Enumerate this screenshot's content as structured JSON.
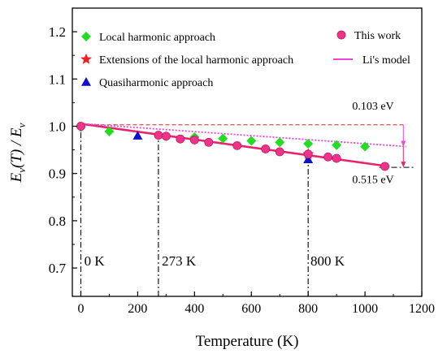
{
  "chart_data": {
    "type": "scatter",
    "xlabel": "Temperature (K)",
    "ylabel_main": "E",
    "ylabel_sub1": "v",
    "ylabel_mid": "(T) / E",
    "ylabel_sub2": "v",
    "xlim": [
      -30,
      1200
    ],
    "ylim": [
      0.64,
      1.25
    ],
    "x_ticks": [
      0,
      200,
      400,
      600,
      800,
      1000,
      1200
    ],
    "y_ticks": [
      0.7,
      0.8,
      0.9,
      1.0,
      1.1,
      1.2
    ],
    "x_tick_labels": [
      "0",
      "200",
      "400",
      "600",
      "800",
      "1000",
      "1200"
    ],
    "y_tick_labels": [
      "0.7",
      "0.8",
      "0.9",
      "1.0",
      "1.1",
      "1.2"
    ],
    "grid": false,
    "series": [
      {
        "name": "Local harmonic approach",
        "marker": "diamond",
        "color": "#22dd22",
        "x": [
          0,
          100,
          300,
          400,
          500,
          600,
          700,
          800,
          900,
          1000
        ],
        "y": [
          0.998,
          0.989,
          0.979,
          0.977,
          0.974,
          0.969,
          0.966,
          0.963,
          0.96,
          0.957
        ]
      },
      {
        "name": "Extensions of the local harmonic approach",
        "marker": "star",
        "color": "#ee2222",
        "x": [
          800
        ],
        "y": [
          0.941
        ]
      },
      {
        "name": "Quasiharmonic approach",
        "marker": "triangle",
        "color": "#1111cc",
        "x": [
          200,
          800
        ],
        "y": [
          0.98,
          0.93
        ]
      },
      {
        "name": "This work",
        "marker": "circle",
        "color": "#ee3388",
        "x": [
          0,
          273,
          300,
          350,
          400,
          450,
          550,
          650,
          700,
          800,
          870,
          900,
          1070
        ],
        "y": [
          1.0,
          0.981,
          0.979,
          0.973,
          0.971,
          0.966,
          0.959,
          0.952,
          0.946,
          0.941,
          0.935,
          0.932,
          0.915
        ]
      }
    ],
    "lines": [
      {
        "name": "This work fit",
        "style": "solid",
        "color": "#e8246e",
        "x": [
          -10,
          1085
        ],
        "y": [
          1.006,
          0.915
        ]
      },
      {
        "name": "Li's model",
        "style": "dotted",
        "color": "#ee44dd",
        "x": [
          -10,
          1145
        ],
        "y": [
          1.006,
          0.957
        ]
      }
    ],
    "reference_lines": [
      {
        "style": "dashed",
        "color": "#e02020",
        "y": 1.003,
        "x": [
          0,
          1145
        ]
      },
      {
        "style": "dashdot",
        "color": "#000000",
        "y": 0.913,
        "x": [
          1050,
          1175
        ]
      },
      {
        "style": "dashdot",
        "color": "#000000",
        "x": 0,
        "y": [
          0.64,
          1.0
        ]
      },
      {
        "style": "dashdot",
        "color": "#000000",
        "x": 273,
        "y": [
          0.64,
          0.981
        ]
      },
      {
        "style": "dashdot",
        "color": "#000000",
        "x": 800,
        "y": [
          0.64,
          0.941
        ]
      }
    ],
    "annotations": [
      {
        "text": "0.103 eV",
        "x": 955,
        "y": 1.035
      },
      {
        "text": "0.515 eV",
        "x": 955,
        "y": 0.88
      },
      {
        "text": "0 K",
        "x": 12,
        "y": 0.705
      },
      {
        "text": "273 K",
        "x": 285,
        "y": 0.705
      },
      {
        "text": "800 K",
        "x": 808,
        "y": 0.705
      }
    ],
    "legend_location": "top",
    "legend": [
      {
        "label": "Local harmonic approach",
        "marker": "diamond",
        "color": "#22dd22"
      },
      {
        "label": "Extensions of the local harmonic approach",
        "marker": "star",
        "color": "#ee2222"
      },
      {
        "label": "Quasiharmonic approach",
        "marker": "triangle",
        "color": "#1111cc"
      },
      {
        "label": "This work",
        "marker": "circle",
        "color": "#ee3388"
      },
      {
        "label": "Li's model",
        "marker": "line",
        "color": "#ee44dd"
      }
    ]
  }
}
